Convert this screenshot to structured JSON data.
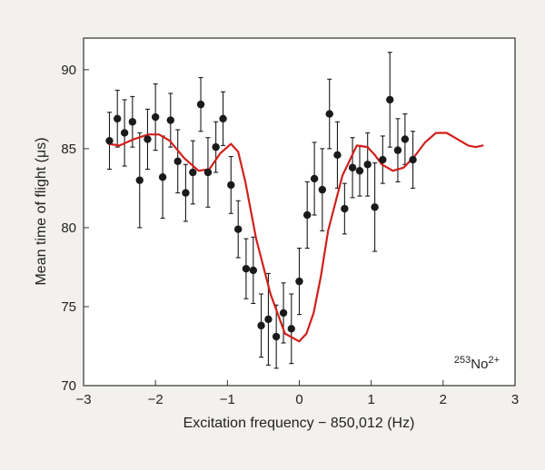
{
  "chart_data": {
    "type": "scatter",
    "title": "",
    "xlabel": "Excitation frequency − 850,012 (Hz)",
    "ylabel": "Mean time of flight (μs)",
    "xlim": [
      -3,
      3
    ],
    "ylim": [
      70,
      92
    ],
    "x_ticks": [
      -3,
      -2,
      -1,
      0,
      1,
      2,
      3
    ],
    "x_tick_labels": [
      "−3",
      "−2",
      "−1",
      "0",
      "1",
      "2",
      "3"
    ],
    "y_ticks": [
      70,
      75,
      80,
      85,
      90
    ],
    "y_tick_labels": [
      "70",
      "75",
      "80",
      "85",
      "90"
    ],
    "grid": false,
    "annotation": {
      "mass_number": "253",
      "element": "No",
      "charge": "2+",
      "position": "bottom-right"
    },
    "colors": {
      "points": "#1a1a1a",
      "fit": "#d0201b",
      "axes": "#333333",
      "background": "#f3f1ee",
      "plot_bg": "#ffffff"
    },
    "series": [
      {
        "kind": "points-with-error-bars",
        "points": [
          {
            "x": -2.64,
            "y": 85.5,
            "err": 1.8
          },
          {
            "x": -2.53,
            "y": 86.9,
            "err": 1.8
          },
          {
            "x": -2.43,
            "y": 86.0,
            "err": 2.1
          },
          {
            "x": -2.32,
            "y": 86.7,
            "err": 1.6
          },
          {
            "x": -2.22,
            "y": 83.0,
            "err": 3.0
          },
          {
            "x": -2.11,
            "y": 85.6,
            "err": 1.9
          },
          {
            "x": -2.0,
            "y": 87.0,
            "err": 2.1
          },
          {
            "x": -1.9,
            "y": 83.2,
            "err": 2.6
          },
          {
            "x": -1.79,
            "y": 86.8,
            "err": 1.7
          },
          {
            "x": -1.69,
            "y": 84.2,
            "err": 2.0
          },
          {
            "x": -1.58,
            "y": 82.2,
            "err": 1.8
          },
          {
            "x": -1.48,
            "y": 83.5,
            "err": 2.0
          },
          {
            "x": -1.37,
            "y": 87.8,
            "err": 1.7
          },
          {
            "x": -1.27,
            "y": 83.5,
            "err": 2.2
          },
          {
            "x": -1.16,
            "y": 85.1,
            "err": 1.6
          },
          {
            "x": -1.06,
            "y": 86.9,
            "err": 1.7
          },
          {
            "x": -0.95,
            "y": 82.7,
            "err": 1.8
          },
          {
            "x": -0.85,
            "y": 79.9,
            "err": 1.8
          },
          {
            "x": -0.74,
            "y": 77.4,
            "err": 1.9
          },
          {
            "x": -0.64,
            "y": 77.3,
            "err": 2.1
          },
          {
            "x": -0.53,
            "y": 73.8,
            "err": 2.0
          },
          {
            "x": -0.43,
            "y": 74.2,
            "err": 2.9
          },
          {
            "x": -0.32,
            "y": 73.1,
            "err": 2.0
          },
          {
            "x": -0.22,
            "y": 74.6,
            "err": 1.9
          },
          {
            "x": -0.11,
            "y": 73.6,
            "err": 2.2
          },
          {
            "x": 0.0,
            "y": 76.6,
            "err": 2.1
          },
          {
            "x": 0.11,
            "y": 80.8,
            "err": 2.1
          },
          {
            "x": 0.21,
            "y": 83.1,
            "err": 2.3
          },
          {
            "x": 0.32,
            "y": 82.4,
            "err": 2.6
          },
          {
            "x": 0.42,
            "y": 87.2,
            "err": 2.2
          },
          {
            "x": 0.53,
            "y": 84.6,
            "err": 2.1
          },
          {
            "x": 0.63,
            "y": 81.2,
            "err": 1.6
          },
          {
            "x": 0.74,
            "y": 83.8,
            "err": 1.9
          },
          {
            "x": 0.84,
            "y": 83.6,
            "err": 1.6
          },
          {
            "x": 0.95,
            "y": 84.0,
            "err": 2.0
          },
          {
            "x": 1.05,
            "y": 81.3,
            "err": 2.8
          },
          {
            "x": 1.16,
            "y": 84.3,
            "err": 1.5
          },
          {
            "x": 1.26,
            "y": 88.1,
            "err": 3.0
          },
          {
            "x": 1.37,
            "y": 84.9,
            "err": 2.0
          },
          {
            "x": 1.47,
            "y": 85.6,
            "err": 1.6
          },
          {
            "x": 1.58,
            "y": 84.3,
            "err": 1.8
          }
        ]
      },
      {
        "kind": "fit-curve",
        "x": [
          -2.65,
          -2.5,
          -2.3,
          -2.1,
          -1.95,
          -1.8,
          -1.6,
          -1.4,
          -1.25,
          -1.1,
          -0.95,
          -0.85,
          -0.75,
          -0.6,
          -0.4,
          -0.2,
          0.0,
          0.1,
          0.2,
          0.3,
          0.4,
          0.6,
          0.8,
          0.95,
          1.05,
          1.15,
          1.3,
          1.45,
          1.6,
          1.75,
          1.9,
          2.05,
          2.2,
          2.35,
          2.45,
          2.55
        ],
        "y": [
          85.3,
          85.2,
          85.6,
          85.9,
          85.9,
          85.5,
          84.4,
          83.6,
          83.7,
          84.7,
          85.3,
          84.8,
          82.9,
          79.3,
          75.8,
          73.3,
          72.8,
          73.3,
          74.6,
          76.9,
          79.8,
          83.3,
          85.2,
          85.1,
          84.6,
          84.0,
          83.6,
          83.8,
          84.5,
          85.4,
          86.0,
          86.0,
          85.6,
          85.2,
          85.1,
          85.2
        ]
      }
    ]
  }
}
